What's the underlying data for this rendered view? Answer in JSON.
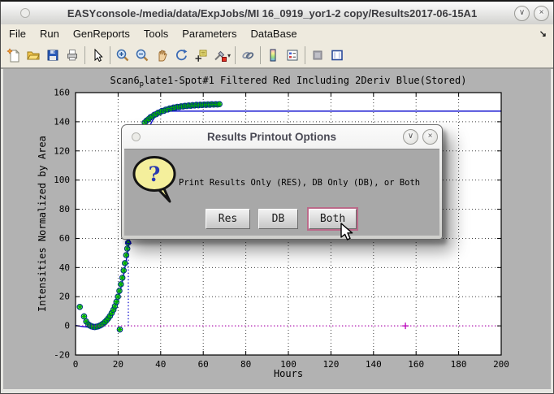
{
  "window": {
    "title": "EASYconsole-/media/data/ExpJobs/MI 16_0919_yor1-2 copy/Results2017-06-15A1",
    "shade_glyph": "∨",
    "close_glyph": "×"
  },
  "menu": {
    "items": [
      "File",
      "Run",
      "GenReports",
      "Tools",
      "Parameters",
      "DataBase"
    ],
    "overflow_glyph": "↘"
  },
  "toolbar": {
    "icon_names": [
      "new-figure",
      "open-file",
      "save-figure",
      "print-figure",
      "pointer",
      "zoom-in",
      "zoom-out",
      "pan",
      "rotate-3d",
      "data-cursor",
      "brush",
      "link-plots",
      "insert-colorbar",
      "insert-legend",
      "hide-plot-tools",
      "show-plot-tools"
    ]
  },
  "dialog": {
    "title": "Results Printout Options",
    "shade_glyph": "∨",
    "close_glyph": "×",
    "icon": "question-bubble-icon",
    "question_mark": "?",
    "message": "Print Results Only (RES), DB Only (DB), or Both",
    "buttons": [
      {
        "label": "Res",
        "focused": false
      },
      {
        "label": "DB",
        "focused": false
      },
      {
        "label": "Both",
        "focused": true
      }
    ]
  },
  "chart_data": {
    "type": "line",
    "title_parts": {
      "pre": "Scan6",
      "sub": "p",
      "post": "late1-Spot#1 Filtered Red Including 2Deriv Blue(Stored)"
    },
    "title_plain": "Scan6_plate1-Spot#1 Filtered Red Including 2Deriv Blue(Stored)",
    "xlabel": "Hours",
    "ylabel": "Intensities Normalized by Area",
    "xlim": [
      0,
      200
    ],
    "ylim": [
      -20,
      160
    ],
    "xticks": [
      0,
      20,
      40,
      60,
      80,
      100,
      120,
      140,
      160,
      180,
      200
    ],
    "yticks": [
      -20,
      0,
      20,
      40,
      60,
      80,
      100,
      120,
      140,
      160
    ],
    "grid": true,
    "colors": {
      "fit_line": "#0000cc",
      "marker_circle": "#0000bb",
      "marker_asterisk": "#00b400",
      "baseline": "#bb00bb",
      "grid": "#404040",
      "plot_bg": "#ffffff",
      "figure_bg": "#b2b2b2"
    },
    "series": [
      {
        "name": "filtered-red-fit-line",
        "type": "line",
        "points": [
          [
            0,
            0.3
          ],
          [
            2,
            -0.2
          ],
          [
            4,
            -0.6
          ],
          [
            6,
            -0.9
          ],
          [
            8,
            -1
          ],
          [
            10,
            -0.7
          ],
          [
            12,
            0.2
          ],
          [
            13,
            0.9
          ],
          [
            14,
            1.9
          ],
          [
            15,
            3.2
          ],
          [
            16,
            5
          ],
          [
            17,
            7.3
          ],
          [
            18,
            10.2
          ],
          [
            19,
            14
          ],
          [
            20,
            18.6
          ],
          [
            21,
            24
          ],
          [
            22,
            30.5
          ],
          [
            23,
            38
          ],
          [
            24,
            46.5
          ],
          [
            25,
            56
          ],
          [
            26,
            66
          ],
          [
            27,
            76.5
          ],
          [
            28,
            87
          ],
          [
            29,
            97
          ],
          [
            30,
            106.5
          ],
          [
            31,
            115
          ],
          [
            32,
            122.5
          ],
          [
            33,
            128.7
          ],
          [
            34,
            133.7
          ],
          [
            35,
            137.5
          ],
          [
            36,
            140.4
          ],
          [
            37,
            142.6
          ],
          [
            38,
            144.2
          ],
          [
            39,
            145.3
          ],
          [
            40,
            146.1
          ],
          [
            41,
            146.6
          ],
          [
            42,
            146.9
          ],
          [
            43,
            147.1
          ],
          [
            44,
            147.2
          ],
          [
            46,
            147.3
          ],
          [
            50,
            147.3
          ],
          [
            60,
            147.3
          ],
          [
            80,
            147.3
          ],
          [
            120,
            147.3
          ],
          [
            160,
            147.3
          ],
          [
            200,
            147.3
          ]
        ]
      },
      {
        "name": "measured-points",
        "type": "scatter",
        "marker": "circle+asterisk",
        "points": [
          [
            2,
            13
          ],
          [
            4,
            6.5
          ],
          [
            5,
            3
          ],
          [
            6,
            1
          ],
          [
            6.8,
            0.2
          ],
          [
            7.5,
            -0.3
          ],
          [
            8.2,
            -0.6
          ],
          [
            9,
            -0.8
          ],
          [
            9.8,
            -0.6
          ],
          [
            10.6,
            -0.3
          ],
          [
            11.4,
            0.2
          ],
          [
            12.2,
            0.8
          ],
          [
            13,
            1.6
          ],
          [
            13.8,
            2.6
          ],
          [
            14.6,
            3.8
          ],
          [
            15.4,
            5.2
          ],
          [
            16.2,
            6.8
          ],
          [
            17,
            8.8
          ],
          [
            17.8,
            11
          ],
          [
            18.5,
            13.5
          ],
          [
            19.2,
            16.5
          ],
          [
            19.9,
            20
          ],
          [
            20.6,
            24
          ],
          [
            21.3,
            28.5
          ],
          [
            22,
            33
          ],
          [
            22.6,
            38
          ],
          [
            23.2,
            43
          ],
          [
            23.8,
            48.5
          ],
          [
            24.3,
            53
          ],
          [
            24.7,
            57
          ],
          [
            20.8,
            -2.5
          ],
          [
            32.5,
            139.4
          ],
          [
            33.4,
            140.8
          ],
          [
            34.3,
            141.8
          ],
          [
            35.2,
            143.1
          ],
          [
            36.1,
            143.7
          ],
          [
            37,
            144.8
          ],
          [
            37.9,
            145.2
          ],
          [
            38.8,
            146.2
          ],
          [
            39.7,
            146.5
          ],
          [
            40.6,
            147.4
          ],
          [
            41.5,
            147.5
          ],
          [
            42.4,
            148.3
          ],
          [
            43.3,
            148.4
          ],
          [
            44.2,
            149.1
          ],
          [
            45.1,
            149.1
          ],
          [
            46,
            149.7
          ],
          [
            46.9,
            149.7
          ],
          [
            47.8,
            150.2
          ],
          [
            48.7,
            150.1
          ],
          [
            49.6,
            150.6
          ],
          [
            50.5,
            150.5
          ],
          [
            51.4,
            150.9
          ],
          [
            52.3,
            150.8
          ],
          [
            53.2,
            151.2
          ],
          [
            54.1,
            151
          ],
          [
            55,
            151.4
          ],
          [
            55.9,
            151.2
          ],
          [
            56.8,
            151.6
          ],
          [
            57.7,
            151.3
          ],
          [
            58.6,
            151.7
          ],
          [
            59.5,
            151.5
          ],
          [
            60.4,
            151.8
          ],
          [
            61.3,
            151.6
          ],
          [
            62.2,
            151.9
          ],
          [
            63.1,
            151.7
          ],
          [
            64,
            152
          ],
          [
            64.9,
            151.8
          ],
          [
            65.8,
            152
          ],
          [
            66.7,
            151.9
          ],
          [
            67.6,
            152.1
          ]
        ]
      },
      {
        "name": "inflection-marker",
        "type": "vline",
        "x": 24.8,
        "y0": 0,
        "y1": 57.5,
        "style": "dotted"
      },
      {
        "name": "zero-baseline",
        "type": "hline",
        "y": 0,
        "x0": 0,
        "x1": 200,
        "style": "dotted",
        "plus_marker_x": 155
      }
    ]
  }
}
